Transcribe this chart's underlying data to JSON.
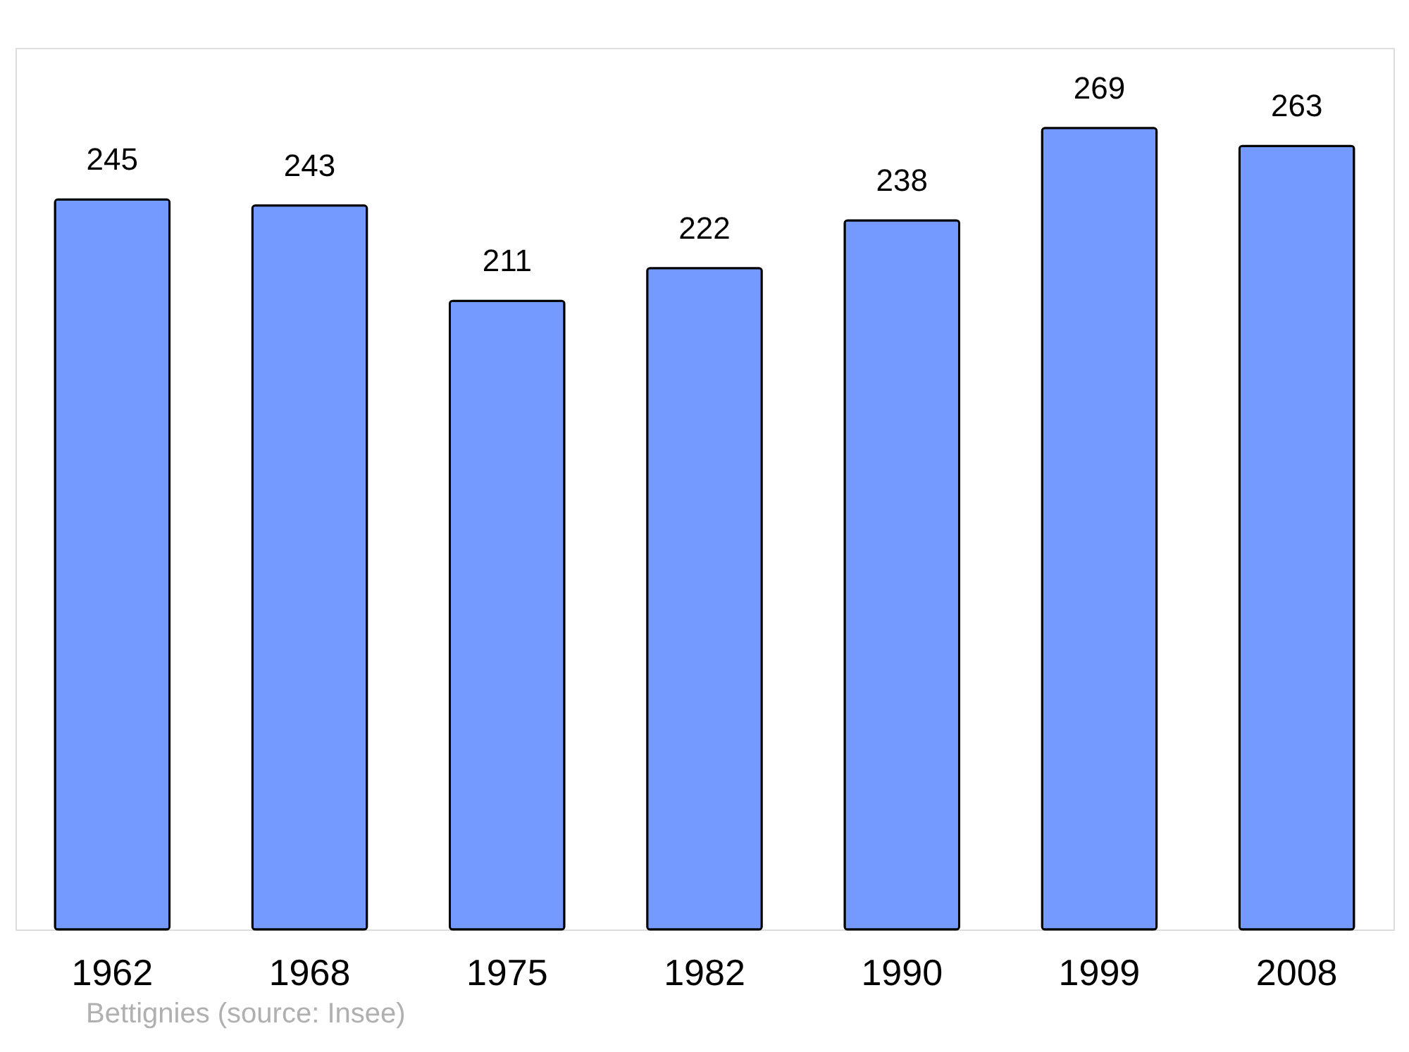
{
  "chart_data": {
    "type": "bar",
    "categories": [
      "1962",
      "1968",
      "1975",
      "1982",
      "1990",
      "1999",
      "2008"
    ],
    "values": [
      245,
      243,
      211,
      222,
      238,
      269,
      263
    ],
    "color": "#7499ff",
    "data_labels": true,
    "grid": false,
    "annotations": [
      "Bettignies    (source: Insee)"
    ]
  }
}
